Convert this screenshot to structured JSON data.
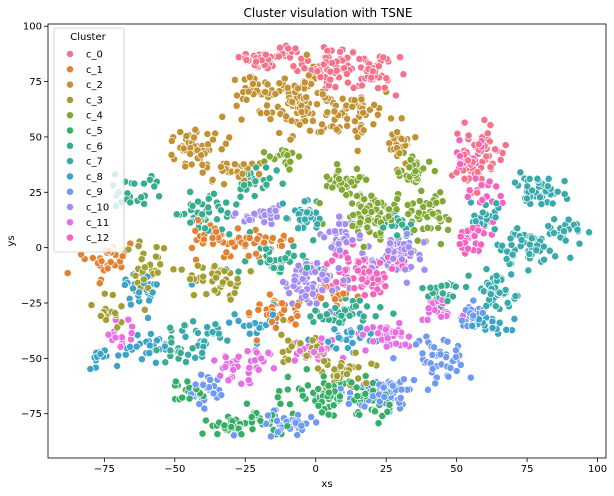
{
  "chart_data": {
    "type": "scatter",
    "title": "Cluster visulation with TSNE",
    "xlabel": "xs",
    "ylabel": "ys",
    "xlim": [
      -95,
      103
    ],
    "ylim": [
      -95,
      101
    ],
    "xticks": [
      -75,
      -50,
      -25,
      0,
      25,
      50,
      75,
      100
    ],
    "yticks": [
      -75,
      -50,
      -25,
      0,
      25,
      50,
      75,
      100
    ],
    "grid": false,
    "legend": {
      "title": "Cluster",
      "placement": "top-left"
    },
    "series": [
      {
        "name": "c_0",
        "color": "#f77189",
        "centers": [
          [
            5,
            82
          ],
          [
            20,
            78
          ],
          [
            -20,
            85
          ],
          [
            60,
            45
          ],
          [
            55,
            35
          ],
          [
            -10,
            88
          ]
        ],
        "spreads": [
          [
            8,
            6
          ],
          [
            6,
            6
          ],
          [
            6,
            4
          ],
          [
            4,
            8
          ],
          [
            4,
            6
          ],
          [
            4,
            3
          ]
        ],
        "counts": [
          60,
          40,
          30,
          35,
          25,
          15
        ]
      },
      {
        "name": "c_1",
        "color": "#e38132",
        "centers": [
          [
            -75,
            -5
          ],
          [
            -25,
            2
          ],
          [
            -15,
            -30
          ],
          [
            -40,
            5
          ],
          [
            5,
            -20
          ]
        ],
        "spreads": [
          [
            6,
            6
          ],
          [
            10,
            5
          ],
          [
            8,
            6
          ],
          [
            6,
            5
          ],
          [
            6,
            4
          ]
        ],
        "counts": [
          30,
          45,
          35,
          25,
          20
        ]
      },
      {
        "name": "c_2",
        "color": "#c29131",
        "centers": [
          [
            -5,
            65
          ],
          [
            -45,
            45
          ],
          [
            15,
            60
          ],
          [
            -20,
            72
          ],
          [
            30,
            45
          ],
          [
            -30,
            35
          ]
        ],
        "spreads": [
          [
            10,
            10
          ],
          [
            8,
            6
          ],
          [
            8,
            8
          ],
          [
            8,
            6
          ],
          [
            5,
            5
          ],
          [
            8,
            5
          ]
        ],
        "counts": [
          90,
          50,
          50,
          40,
          25,
          30
        ]
      },
      {
        "name": "c_3",
        "color": "#a39e31",
        "centers": [
          [
            -35,
            -15
          ],
          [
            -60,
            -10
          ],
          [
            10,
            -55
          ],
          [
            -5,
            -45
          ],
          [
            -75,
            -30
          ]
        ],
        "spreads": [
          [
            8,
            6
          ],
          [
            6,
            8
          ],
          [
            8,
            5
          ],
          [
            6,
            5
          ],
          [
            4,
            5
          ]
        ],
        "counts": [
          40,
          30,
          35,
          25,
          15
        ]
      },
      {
        "name": "c_4",
        "color": "#80a832",
        "centers": [
          [
            20,
            15
          ],
          [
            40,
            15
          ],
          [
            10,
            30
          ],
          [
            35,
            35
          ],
          [
            -10,
            40
          ]
        ],
        "spreads": [
          [
            8,
            8
          ],
          [
            6,
            8
          ],
          [
            6,
            4
          ],
          [
            5,
            5
          ],
          [
            5,
            5
          ]
        ],
        "counts": [
          80,
          50,
          30,
          25,
          20
        ]
      },
      {
        "name": "c_5",
        "color": "#34af66",
        "centers": [
          [
            5,
            -65
          ],
          [
            -30,
            -80
          ],
          [
            -45,
            -65
          ],
          [
            20,
            -70
          ],
          [
            -15,
            -80
          ]
        ],
        "spreads": [
          [
            10,
            6
          ],
          [
            6,
            4
          ],
          [
            5,
            4
          ],
          [
            6,
            5
          ],
          [
            6,
            4
          ]
        ],
        "counts": [
          60,
          30,
          20,
          30,
          20
        ]
      },
      {
        "name": "c_6",
        "color": "#36ad8f",
        "centers": [
          [
            -40,
            15
          ],
          [
            -15,
            -5
          ],
          [
            10,
            -30
          ],
          [
            45,
            -20
          ],
          [
            -65,
            25
          ],
          [
            -20,
            30
          ],
          [
            30,
            10
          ],
          [
            -50,
            -45
          ]
        ],
        "spreads": [
          [
            8,
            6
          ],
          [
            8,
            6
          ],
          [
            8,
            5
          ],
          [
            6,
            6
          ],
          [
            6,
            6
          ],
          [
            6,
            5
          ],
          [
            5,
            5
          ],
          [
            5,
            5
          ]
        ],
        "counts": [
          40,
          35,
          35,
          30,
          25,
          25,
          20,
          20
        ]
      },
      {
        "name": "c_7",
        "color": "#38aaac",
        "centers": [
          [
            80,
            25
          ],
          [
            75,
            0
          ],
          [
            65,
            -20
          ],
          [
            -5,
            15
          ],
          [
            -40,
            -40
          ],
          [
            90,
            8
          ],
          [
            60,
            15
          ]
        ],
        "spreads": [
          [
            5,
            6
          ],
          [
            8,
            8
          ],
          [
            6,
            8
          ],
          [
            5,
            6
          ],
          [
            5,
            5
          ],
          [
            5,
            4
          ],
          [
            4,
            6
          ]
        ],
        "counts": [
          50,
          50,
          40,
          30,
          25,
          20,
          20
        ]
      },
      {
        "name": "c_8",
        "color": "#3ba3ca",
        "centers": [
          [
            -60,
            -45
          ],
          [
            -60,
            -20
          ],
          [
            10,
            -40
          ],
          [
            60,
            -35
          ],
          [
            -75,
            -50
          ],
          [
            -20,
            -35
          ]
        ],
        "spreads": [
          [
            5,
            5
          ],
          [
            6,
            6
          ],
          [
            8,
            5
          ],
          [
            6,
            4
          ],
          [
            4,
            4
          ],
          [
            6,
            4
          ]
        ],
        "counts": [
          25,
          25,
          30,
          25,
          15,
          20
        ]
      },
      {
        "name": "c_9",
        "color": "#6e9af4",
        "centers": [
          [
            25,
            -65
          ],
          [
            -10,
            -80
          ],
          [
            45,
            -50
          ],
          [
            -40,
            -65
          ],
          [
            55,
            -30
          ]
        ],
        "spreads": [
          [
            10,
            6
          ],
          [
            8,
            4
          ],
          [
            6,
            6
          ],
          [
            5,
            5
          ],
          [
            4,
            5
          ]
        ],
        "counts": [
          70,
          35,
          40,
          25,
          20
        ]
      },
      {
        "name": "c_10",
        "color": "#a38cf4",
        "centers": [
          [
            0,
            -15
          ],
          [
            25,
            -5
          ],
          [
            -20,
            15
          ],
          [
            30,
            0
          ],
          [
            10,
            5
          ]
        ],
        "spreads": [
          [
            8,
            8
          ],
          [
            8,
            6
          ],
          [
            6,
            4
          ],
          [
            5,
            5
          ],
          [
            5,
            5
          ]
        ],
        "counts": [
          70,
          40,
          25,
          25,
          25
        ]
      },
      {
        "name": "c_11",
        "color": "#e96ee6",
        "centers": [
          [
            25,
            -40
          ],
          [
            0,
            -45
          ],
          [
            -30,
            -55
          ],
          [
            -20,
            -50
          ],
          [
            45,
            -30
          ],
          [
            -70,
            -40
          ]
        ],
        "spreads": [
          [
            6,
            5
          ],
          [
            6,
            5
          ],
          [
            6,
            5
          ],
          [
            4,
            4
          ],
          [
            5,
            4
          ],
          [
            4,
            4
          ]
        ],
        "counts": [
          35,
          25,
          25,
          15,
          20,
          15
        ]
      },
      {
        "name": "c_12",
        "color": "#f562bf",
        "centers": [
          [
            15,
            -10
          ],
          [
            20,
            -15
          ],
          [
            55,
            5
          ],
          [
            55,
            40
          ],
          [
            30,
            -5
          ],
          [
            60,
            25
          ]
        ],
        "spreads": [
          [
            8,
            6
          ],
          [
            6,
            5
          ],
          [
            5,
            5
          ],
          [
            4,
            5
          ],
          [
            4,
            4
          ],
          [
            4,
            4
          ]
        ],
        "counts": [
          50,
          30,
          25,
          25,
          15,
          15
        ]
      }
    ]
  }
}
